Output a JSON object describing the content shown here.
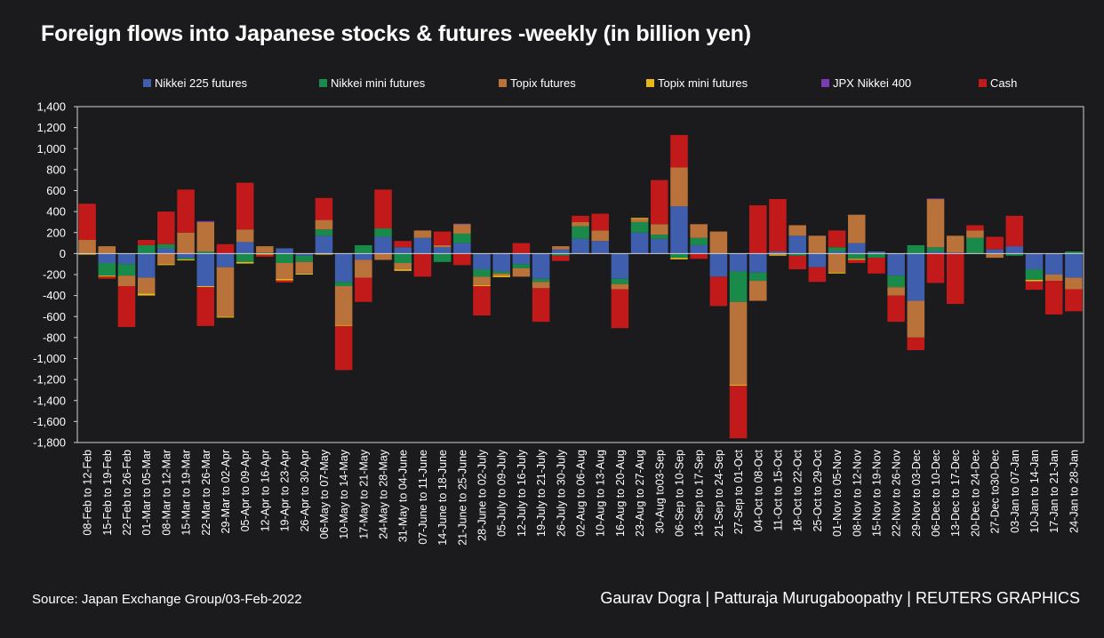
{
  "title": "Foreign flows into Japanese stocks & futures -weekly (in billion yen)",
  "source": "Source: Japan Exchange Group/03-Feb-2022",
  "credit": "Gaurav Dogra | Patturaja Murugaboopathy | REUTERS GRAPHICS",
  "chart_data": {
    "type": "bar",
    "stacked": true,
    "title": "Foreign flows into Japanese stocks & futures -weekly (in billion yen)",
    "xlabel": "",
    "ylabel": "",
    "ylim": [
      -1800,
      1400
    ],
    "yticks": [
      1400,
      1200,
      1000,
      800,
      600,
      400,
      200,
      0,
      -200,
      -400,
      -600,
      -800,
      -1000,
      -1200,
      -1400,
      -1600,
      -1800
    ],
    "ytick_labels": [
      "1,400",
      "1,200",
      "1,000",
      "800",
      "600",
      "400",
      "200",
      "0",
      "-200",
      "-400",
      "-600",
      "-800",
      "-1,000",
      "-1,200",
      "-1,400",
      "-1,600",
      "-1,800"
    ],
    "grid": false,
    "legend_position": "top",
    "categories": [
      "08-Feb to 12-Feb",
      "15-Feb to 19-Feb",
      "22-Feb to 26-Feb",
      "01-Mar to 05-Mar",
      "08-Mar to 12-Mar",
      "15-Mar to 19-Mar",
      "22-Mar to 26-Mar",
      "29-Mar to 02-Apr",
      "05-Apr to 09-Apr",
      "12-Apr to 16-Apr",
      "19-Apr to 23-Apr",
      "26-Apr to 30-Apr",
      "06-May to 07-May",
      "10-May to 14-May",
      "17-May to 21-May",
      "24-May to 28-May",
      "31-May to 04-June",
      "07-June to 11-June",
      "14-June to 18-June",
      "21-June to 25-June",
      "28-June to 02-July",
      "05-July to 09-July",
      "12-July to 16-July",
      "19-July to 21-July",
      "26-July to 30-July",
      "02-Aug to 06-Aug",
      "10-Aug to 13-Aug",
      "16-Aug to 20-Aug",
      "23-Aug to 27-Aug",
      "30-Aug to03-Sep",
      "06-Sep to 10-Sep",
      "13-Sep to 17-Sep",
      "21-Sep to 24-Sep",
      "27-Sep to 01-Oct",
      "04-Oct to 08-Oct",
      "11-Oct to 15-Oct",
      "18-Oct to 22-Oct",
      "25-Oct to 29-Oct",
      "01-Nov to 05-Nov",
      "08-Nov to 12-Nov",
      "15-Nov to 19-Nov",
      "22-Nov to 26-Nov",
      "29-Nov to 03-Dec",
      "06-Dec to 10-Dec",
      "13-Dec to 17-Dec",
      "20-Dec to 24-Dec",
      "27-Dec to30-Dec",
      "03-Jan to 07-Jan",
      "10-Jan to 14-Jan",
      "17-Jan to 21-Jan",
      "24-Jan to 28-Jan"
    ],
    "series": [
      {
        "name": "Nikkei 225 futures",
        "color": "#3f5eae",
        "values": [
          0,
          -90,
          -100,
          -230,
          50,
          -40,
          -310,
          -130,
          110,
          0,
          50,
          -20,
          170,
          -270,
          -60,
          160,
          60,
          150,
          60,
          100,
          -150,
          -170,
          -100,
          -240,
          40,
          140,
          120,
          -240,
          200,
          140,
          450,
          80,
          -220,
          -170,
          -180,
          20,
          170,
          -130,
          20,
          100,
          20,
          -210,
          -450,
          20,
          10,
          0,
          40,
          70,
          -150,
          -200,
          -230
        ]
      },
      {
        "name": "Nikkei mini futures",
        "color": "#1a8a4a",
        "values": [
          0,
          -120,
          -110,
          80,
          40,
          -15,
          20,
          0,
          -80,
          10,
          -90,
          -60,
          60,
          -40,
          80,
          80,
          -90,
          0,
          -80,
          90,
          -70,
          -20,
          -40,
          -30,
          -20,
          120,
          0,
          -50,
          100,
          40,
          -40,
          70,
          0,
          -290,
          -80,
          0,
          -20,
          0,
          40,
          -50,
          -40,
          -110,
          80,
          40,
          0,
          150,
          0,
          -20,
          -100,
          0,
          20
        ]
      },
      {
        "name": "Topix futures",
        "color": "#b8723a",
        "values": [
          130,
          70,
          -100,
          -150,
          -100,
          200,
          280,
          -470,
          120,
          60,
          -150,
          -110,
          90,
          -370,
          -170,
          -60,
          -60,
          70,
          20,
          90,
          -80,
          -20,
          -80,
          -60,
          30,
          40,
          100,
          -50,
          30,
          100,
          370,
          130,
          210,
          -790,
          -190,
          -10,
          100,
          170,
          -180,
          270,
          0,
          -80,
          -350,
          460,
          160,
          70,
          -40,
          0,
          0,
          -60,
          -110
        ]
      },
      {
        "name": "Topix mini futures",
        "color": "#e6b819",
        "values": [
          -10,
          -10,
          0,
          -20,
          -10,
          -10,
          -10,
          -10,
          -15,
          -10,
          -15,
          -10,
          -10,
          -10,
          0,
          0,
          -15,
          0,
          0,
          0,
          -10,
          -15,
          0,
          0,
          0,
          0,
          0,
          0,
          10,
          0,
          -15,
          0,
          0,
          -10,
          0,
          -10,
          0,
          0,
          -10,
          -10,
          0,
          0,
          0,
          0,
          0,
          0,
          0,
          0,
          -15,
          0,
          0
        ]
      },
      {
        "name": "JPX Nikkei 400",
        "color": "#7a3bb5",
        "values": [
          0,
          0,
          0,
          0,
          0,
          0,
          10,
          0,
          0,
          0,
          0,
          0,
          0,
          0,
          0,
          0,
          0,
          0,
          0,
          5,
          0,
          5,
          0,
          0,
          0,
          0,
          0,
          0,
          0,
          0,
          0,
          0,
          0,
          0,
          0,
          0,
          0,
          0,
          0,
          0,
          0,
          0,
          0,
          5,
          0,
          0,
          0,
          0,
          0,
          0,
          0
        ]
      },
      {
        "name": "Cash",
        "color": "#c21a1a",
        "values": [
          345,
          -20,
          -390,
          50,
          310,
          410,
          -370,
          90,
          445,
          -20,
          -20,
          0,
          210,
          -420,
          -230,
          370,
          60,
          -220,
          130,
          -110,
          -280,
          0,
          100,
          -320,
          -50,
          60,
          160,
          -370,
          0,
          420,
          310,
          -50,
          -280,
          -500,
          460,
          500,
          -130,
          -140,
          160,
          -30,
          -150,
          -250,
          -120,
          -280,
          -480,
          50,
          120,
          290,
          -80,
          -320,
          -210
        ]
      }
    ]
  }
}
